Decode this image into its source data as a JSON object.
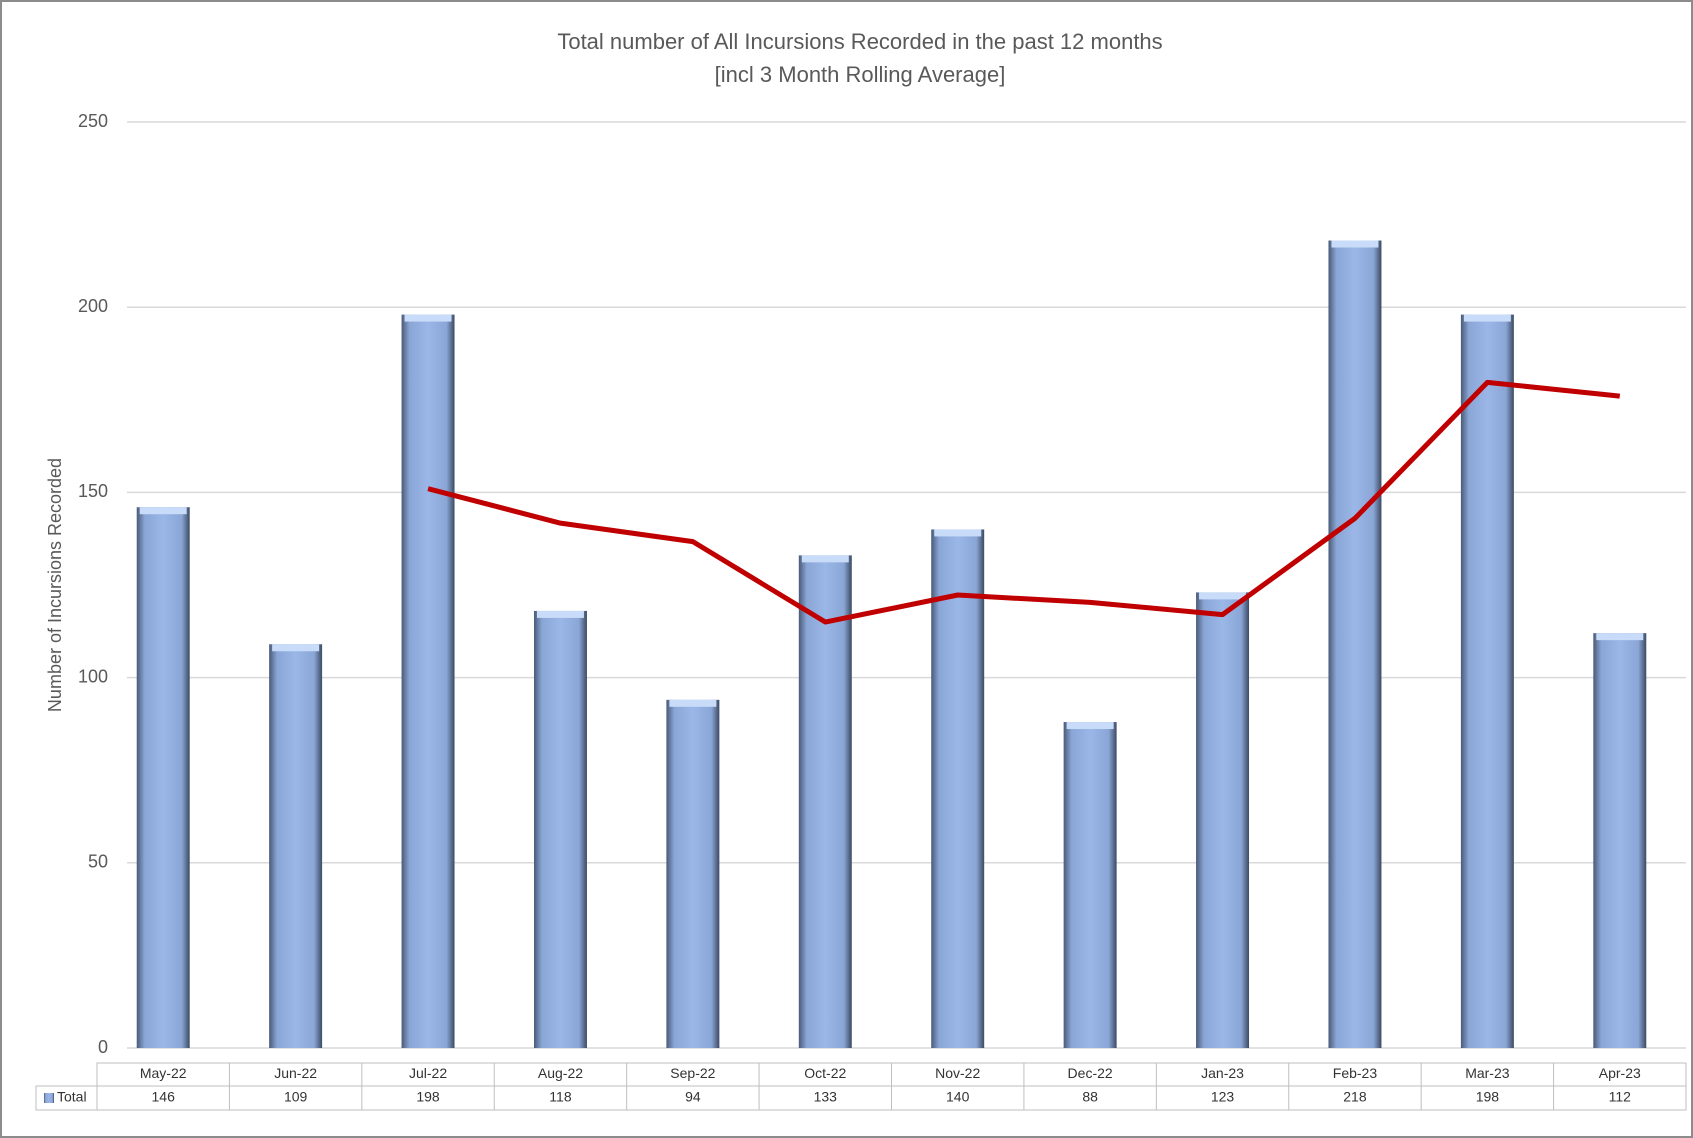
{
  "chart_data": {
    "type": "bar",
    "title": "Total number of All Incursions Recorded in the past 12 months",
    "subtitle": "[incl 3 Month Rolling Average]",
    "y_label": "Number of Incursions Recorded",
    "categories": [
      "May-22",
      "Jun-22",
      "Jul-22",
      "Aug-22",
      "Sep-22",
      "Oct-22",
      "Nov-22",
      "Dec-22",
      "Jan-23",
      "Feb-23",
      "Mar-23",
      "Apr-23"
    ],
    "series": [
      {
        "name": "Total",
        "type": "bar",
        "color": "#9ab7e8",
        "values": [
          146,
          109,
          198,
          118,
          94,
          133,
          140,
          88,
          123,
          218,
          198,
          112
        ]
      },
      {
        "type": "line",
        "color": "#c00000",
        "values": [
          null,
          null,
          151,
          141.7,
          136.7,
          115,
          122.3,
          120.3,
          117,
          143,
          179.7,
          176
        ]
      }
    ],
    "ylim": [
      0,
      250
    ],
    "yticks": [
      0,
      50,
      100,
      150,
      200,
      250
    ],
    "grid": true
  }
}
